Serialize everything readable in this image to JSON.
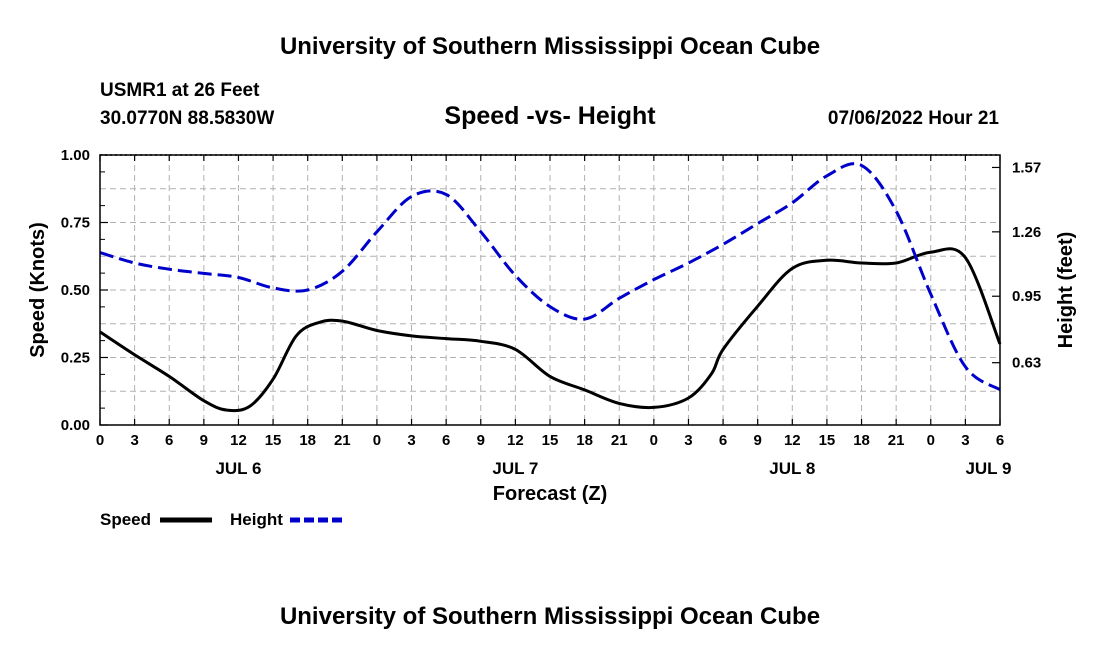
{
  "page": {
    "title_top": "University of Southern Mississippi Ocean Cube",
    "title_bottom": "University of Southern Mississippi Ocean Cube",
    "station": "USMR1 at 26 Feet",
    "coords": "30.0770N  88.5830W",
    "date": "07/06/2022 Hour 21"
  },
  "chart_data": {
    "type": "line",
    "title": "Speed -vs- Height",
    "xlabel": "Forecast (Z)",
    "ylabel_left": "Speed (Knots)",
    "ylabel_right": "Height (feet)",
    "x_unit": "hours from JUL 6 00Z",
    "xlim": [
      0,
      78
    ],
    "ylim_left": [
      0,
      1
    ],
    "ylim_right": [
      0.33,
      1.63
    ],
    "x_ticks": [
      0,
      3,
      6,
      9,
      12,
      15,
      18,
      21,
      24,
      27,
      30,
      33,
      36,
      39,
      42,
      45,
      48,
      51,
      54,
      57,
      60,
      63,
      66,
      69,
      72,
      75,
      78
    ],
    "x_tick_labels": [
      "0",
      "3",
      "6",
      "9",
      "12",
      "15",
      "18",
      "21",
      "0",
      "3",
      "6",
      "9",
      "12",
      "15",
      "18",
      "21",
      "0",
      "3",
      "6",
      "9",
      "12",
      "15",
      "18",
      "21",
      "0",
      "3",
      "6"
    ],
    "day_labels": [
      {
        "label": "JUL 6",
        "x": 12
      },
      {
        "label": "JUL 7",
        "x": 36
      },
      {
        "label": "JUL 8",
        "x": 60
      },
      {
        "label": "JUL 9",
        "x": 77
      }
    ],
    "y_left_ticks": [
      0,
      0.25,
      0.5,
      0.75,
      1.0
    ],
    "y_left_tick_labels": [
      "0.00",
      "0.25",
      "0.50",
      "0.75",
      "1.00"
    ],
    "y_right_ticks": [
      0.63,
      0.95,
      1.26,
      1.57
    ],
    "y_right_tick_labels": [
      "0.63",
      "0.95",
      "1.26",
      "1.57"
    ],
    "grid": true,
    "legend": {
      "position": "bottom-left",
      "speed_label": "Speed",
      "height_label": "Height"
    },
    "series": [
      {
        "name": "Speed",
        "axis": "left",
        "color": "#000000",
        "dash": "solid",
        "x": [
          0,
          3,
          6,
          9,
          11,
          13,
          15,
          17,
          19,
          21,
          24,
          27,
          30,
          33,
          36,
          39,
          42,
          45,
          48,
          51,
          53,
          54,
          57,
          60,
          63,
          66,
          69,
          72,
          75,
          78
        ],
        "values": [
          0.345,
          0.26,
          0.18,
          0.09,
          0.055,
          0.07,
          0.17,
          0.33,
          0.38,
          0.385,
          0.35,
          0.33,
          0.32,
          0.31,
          0.28,
          0.18,
          0.13,
          0.08,
          0.065,
          0.1,
          0.19,
          0.28,
          0.44,
          0.58,
          0.61,
          0.6,
          0.6,
          0.64,
          0.62,
          0.3
        ]
      },
      {
        "name": "Height",
        "axis": "right",
        "color": "#0000cc",
        "dash": "dashed",
        "x": [
          0,
          3,
          6,
          9,
          12,
          15,
          18,
          21,
          24,
          27,
          30,
          33,
          36,
          39,
          42,
          45,
          48,
          51,
          54,
          57,
          60,
          63,
          66,
          69,
          72,
          75,
          78
        ],
        "values": [
          1.16,
          1.11,
          1.08,
          1.06,
          1.04,
          0.99,
          0.98,
          1.07,
          1.26,
          1.43,
          1.44,
          1.26,
          1.05,
          0.9,
          0.84,
          0.94,
          1.03,
          1.11,
          1.2,
          1.3,
          1.4,
          1.53,
          1.58,
          1.36,
          0.96,
          0.61,
          0.5
        ]
      }
    ]
  }
}
